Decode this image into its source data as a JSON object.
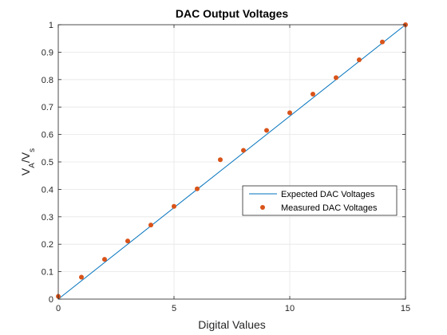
{
  "chart_data": {
    "type": "line+scatter",
    "title": "DAC Output Voltages",
    "xlabel": "Digital Values",
    "ylabel": {
      "base1": "V",
      "sub1": "A",
      "slash": "/V",
      "sub2": "s"
    },
    "xlim": [
      0,
      15
    ],
    "ylim": [
      0,
      1
    ],
    "xticks": [
      0,
      5,
      10,
      15
    ],
    "yticks": [
      0,
      0.1,
      0.2,
      0.3,
      0.4,
      0.5,
      0.6,
      0.7,
      0.8,
      0.9,
      1
    ],
    "grid": true,
    "legend_location": "right-middle",
    "series": [
      {
        "name": "Expected DAC Voltages",
        "kind": "line",
        "color": "#0072BD",
        "x": [
          0,
          15
        ],
        "y": [
          0,
          1
        ]
      },
      {
        "name": "Measured DAC Voltages",
        "kind": "scatter",
        "color": "#D95319",
        "x": [
          0,
          1,
          2,
          3,
          4,
          5,
          6,
          7,
          8,
          9,
          10,
          11,
          12,
          13,
          14,
          15
        ],
        "y": [
          0.01,
          0.08,
          0.145,
          0.212,
          0.27,
          0.338,
          0.402,
          0.508,
          0.542,
          0.615,
          0.679,
          0.747,
          0.807,
          0.872,
          0.937,
          1.0
        ]
      }
    ]
  }
}
